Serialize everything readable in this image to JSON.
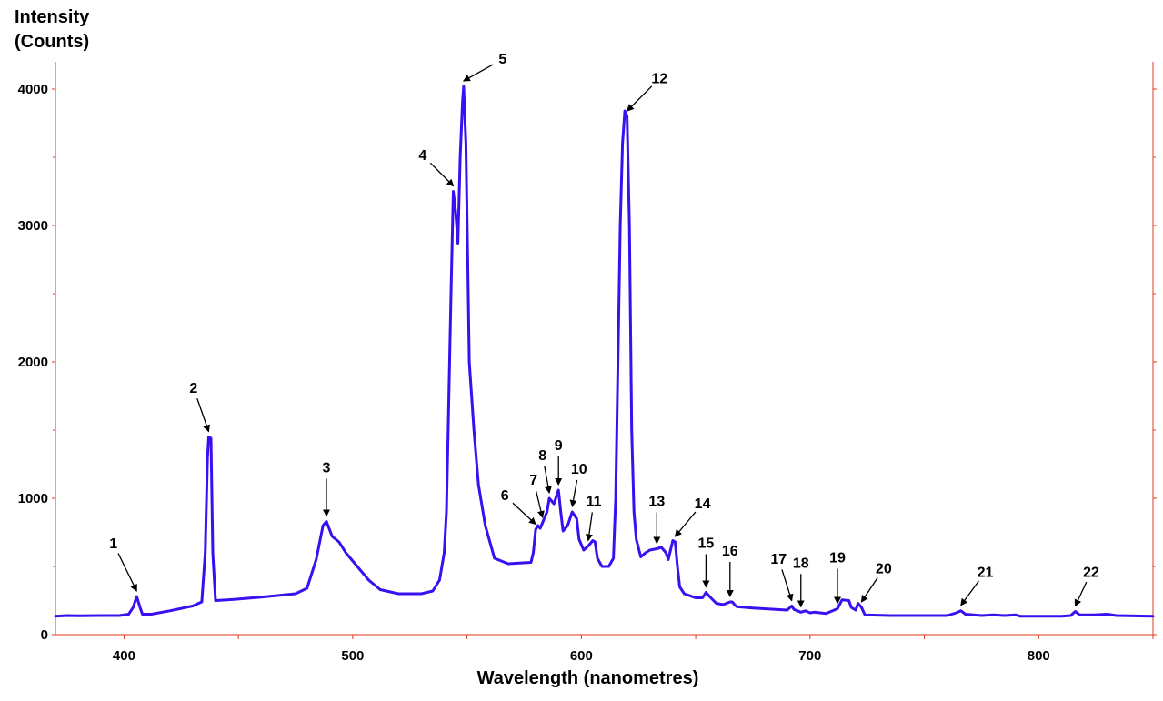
{
  "chart_data": {
    "type": "line",
    "ylabel_line1": "Intensity",
    "ylabel_line2": "(Counts)",
    "xlabel": "Wavelength (nanometres)",
    "xlim": [
      370,
      850
    ],
    "ylim": [
      0,
      4200
    ],
    "x_ticks": [
      400,
      500,
      600,
      700,
      800
    ],
    "y_ticks": [
      0,
      1000,
      2000,
      3000,
      4000
    ],
    "colors": {
      "line": "#3a0ff0",
      "axis": "#e03a1e",
      "arrow": "#000000"
    },
    "series": [
      {
        "points": [
          [
            370,
            135
          ],
          [
            375,
            140
          ],
          [
            380,
            138
          ],
          [
            390,
            140
          ],
          [
            398,
            140
          ],
          [
            402,
            150
          ],
          [
            404,
            200
          ],
          [
            405.5,
            280
          ],
          [
            407,
            200
          ],
          [
            408,
            150
          ],
          [
            412,
            150
          ],
          [
            420,
            175
          ],
          [
            430,
            210
          ],
          [
            434,
            240
          ],
          [
            435.5,
            600
          ],
          [
            436.5,
            1300
          ],
          [
            437,
            1450
          ],
          [
            438,
            1440
          ],
          [
            438.8,
            600
          ],
          [
            440,
            250
          ],
          [
            445,
            255
          ],
          [
            460,
            275
          ],
          [
            475,
            300
          ],
          [
            480,
            340
          ],
          [
            484,
            550
          ],
          [
            487,
            800
          ],
          [
            488.5,
            830
          ],
          [
            491,
            720
          ],
          [
            494,
            680
          ],
          [
            497,
            600
          ],
          [
            503,
            480
          ],
          [
            507,
            400
          ],
          [
            512,
            330
          ],
          [
            520,
            300
          ],
          [
            530,
            300
          ],
          [
            535,
            320
          ],
          [
            538,
            400
          ],
          [
            540,
            600
          ],
          [
            541,
            900
          ],
          [
            542,
            1700
          ],
          [
            543,
            2500
          ],
          [
            544,
            3250
          ],
          [
            545,
            3100
          ],
          [
            546,
            2870
          ],
          [
            547,
            3500
          ],
          [
            548,
            3900
          ],
          [
            548.5,
            4020
          ],
          [
            549.5,
            3600
          ],
          [
            551,
            2000
          ],
          [
            553,
            1500
          ],
          [
            555,
            1100
          ],
          [
            558,
            800
          ],
          [
            562,
            560
          ],
          [
            568,
            520
          ],
          [
            578,
            530
          ],
          [
            579,
            600
          ],
          [
            580,
            770
          ],
          [
            581,
            800
          ],
          [
            582,
            780
          ],
          [
            583,
            820
          ],
          [
            585,
            900
          ],
          [
            586,
            1000
          ],
          [
            588,
            960
          ],
          [
            590,
            1060
          ],
          [
            591,
            900
          ],
          [
            592,
            760
          ],
          [
            594,
            800
          ],
          [
            596,
            900
          ],
          [
            598,
            850
          ],
          [
            599,
            700
          ],
          [
            601,
            620
          ],
          [
            603,
            650
          ],
          [
            605,
            690
          ],
          [
            606,
            680
          ],
          [
            607,
            560
          ],
          [
            609,
            500
          ],
          [
            612,
            500
          ],
          [
            614,
            560
          ],
          [
            615,
            1000
          ],
          [
            616,
            2000
          ],
          [
            617,
            3000
          ],
          [
            618,
            3600
          ],
          [
            619,
            3840
          ],
          [
            620,
            3800
          ],
          [
            621,
            3000
          ],
          [
            622,
            1500
          ],
          [
            623,
            900
          ],
          [
            624,
            700
          ],
          [
            626,
            570
          ],
          [
            628,
            600
          ],
          [
            630,
            620
          ],
          [
            633,
            630
          ],
          [
            635,
            640
          ],
          [
            637,
            600
          ],
          [
            638,
            550
          ],
          [
            640,
            690
          ],
          [
            641,
            680
          ],
          [
            642,
            500
          ],
          [
            643,
            350
          ],
          [
            645,
            300
          ],
          [
            650,
            270
          ],
          [
            653,
            270
          ],
          [
            654.5,
            310
          ],
          [
            656,
            280
          ],
          [
            659,
            230
          ],
          [
            662,
            220
          ],
          [
            665,
            240
          ],
          [
            666,
            240
          ],
          [
            667,
            220
          ],
          [
            668,
            205
          ],
          [
            675,
            195
          ],
          [
            690,
            180
          ],
          [
            692,
            210
          ],
          [
            693,
            185
          ],
          [
            696,
            165
          ],
          [
            698,
            175
          ],
          [
            700,
            160
          ],
          [
            702,
            165
          ],
          [
            707,
            155
          ],
          [
            712,
            190
          ],
          [
            714,
            255
          ],
          [
            717,
            250
          ],
          [
            718,
            200
          ],
          [
            720,
            180
          ],
          [
            721,
            230
          ],
          [
            722.5,
            200
          ],
          [
            724,
            145
          ],
          [
            735,
            140
          ],
          [
            760,
            140
          ],
          [
            764,
            160
          ],
          [
            766,
            175
          ],
          [
            768,
            150
          ],
          [
            775,
            140
          ],
          [
            780,
            145
          ],
          [
            785,
            140
          ],
          [
            790,
            145
          ],
          [
            792,
            135
          ],
          [
            800,
            135
          ],
          [
            810,
            135
          ],
          [
            814,
            140
          ],
          [
            816,
            170
          ],
          [
            818,
            145
          ],
          [
            824,
            145
          ],
          [
            830,
            150
          ],
          [
            834,
            140
          ],
          [
            850,
            135
          ]
        ]
      }
    ],
    "annotations": [
      {
        "label": "1",
        "x": 405.5,
        "y": 280,
        "dx": -22,
        "dy": -45
      },
      {
        "label": "2",
        "x": 437,
        "y": 1450,
        "dx": -14,
        "dy": -40
      },
      {
        "label": "3",
        "x": 488.5,
        "y": 830,
        "dx": 0,
        "dy": -45
      },
      {
        "label": "4",
        "x": 544,
        "y": 3250,
        "dx": -28,
        "dy": -28
      },
      {
        "label": "5",
        "x": 548.5,
        "y": 4020,
        "dx": 36,
        "dy": -20
      },
      {
        "label": "6",
        "x": 580,
        "y": 770,
        "dx": -28,
        "dy": -26
      },
      {
        "label": "7",
        "x": 583,
        "y": 820,
        "dx": -8,
        "dy": -33
      },
      {
        "label": "8",
        "x": 586,
        "y": 1000,
        "dx": -6,
        "dy": -33
      },
      {
        "label": "9",
        "x": 590,
        "y": 1060,
        "dx": 0,
        "dy": -35
      },
      {
        "label": "10",
        "x": 596,
        "y": 900,
        "dx": 6,
        "dy": -33
      },
      {
        "label": "11",
        "x": 603,
        "y": 650,
        "dx": 5,
        "dy": -35
      },
      {
        "label": "12",
        "x": 620,
        "y": 3800,
        "dx": 30,
        "dy": -30
      },
      {
        "label": "13",
        "x": 633,
        "y": 630,
        "dx": 0,
        "dy": -38
      },
      {
        "label": "14",
        "x": 641,
        "y": 680,
        "dx": 25,
        "dy": -30
      },
      {
        "label": "15",
        "x": 654.5,
        "y": 310,
        "dx": 0,
        "dy": -40
      },
      {
        "label": "16",
        "x": 665,
        "y": 240,
        "dx": 0,
        "dy": -42
      },
      {
        "label": "17",
        "x": 692,
        "y": 210,
        "dx": -12,
        "dy": -38
      },
      {
        "label": "18",
        "x": 696,
        "y": 165,
        "dx": 0,
        "dy": -40
      },
      {
        "label": "19",
        "x": 712,
        "y": 190,
        "dx": 0,
        "dy": -42
      },
      {
        "label": "20",
        "x": 722.5,
        "y": 200,
        "dx": 20,
        "dy": -30
      },
      {
        "label": "21",
        "x": 766,
        "y": 175,
        "dx": 22,
        "dy": -30
      },
      {
        "label": "22",
        "x": 816,
        "y": 170,
        "dx": 14,
        "dy": -30
      }
    ]
  }
}
